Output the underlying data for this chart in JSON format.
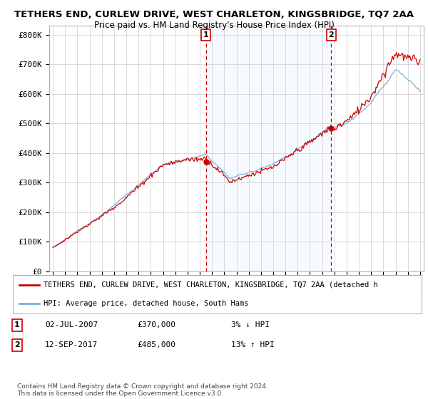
{
  "title": "TETHERS END, CURLEW DRIVE, WEST CHARLETON, KINGSBRIDGE, TQ7 2AA",
  "subtitle": "Price paid vs. HM Land Registry's House Price Index (HPI)",
  "ylabel_ticks": [
    "£0",
    "£100K",
    "£200K",
    "£300K",
    "£400K",
    "£500K",
    "£600K",
    "£700K",
    "£800K"
  ],
  "ytick_values": [
    0,
    100000,
    200000,
    300000,
    400000,
    500000,
    600000,
    700000,
    800000
  ],
  "ylim": [
    0,
    830000
  ],
  "sale1_year": 2007.5,
  "sale1_price": 370000,
  "sale2_year": 2017.75,
  "sale2_price": 485000,
  "hpi_color": "#7bafd4",
  "property_color": "#cc0000",
  "dashed_color": "#cc0000",
  "shade_color": "#ddeeff",
  "background_color": "#ffffff",
  "grid_color": "#cccccc",
  "legend_text_property": "TETHERS END, CURLEW DRIVE, WEST CHARLETON, KINGSBRIDGE, TQ7 2AA (detached h",
  "legend_text_hpi": "HPI: Average price, detached house, South Hams",
  "annotation1_date": "02-JUL-2007",
  "annotation1_price": "£370,000",
  "annotation1_hpi": "3% ↓ HPI",
  "annotation2_date": "12-SEP-2017",
  "annotation2_price": "£485,000",
  "annotation2_hpi": "13% ↑ HPI",
  "footer": "Contains HM Land Registry data © Crown copyright and database right 2024.\nThis data is licensed under the Open Government Licence v3.0.",
  "xlim_left": 1994.7,
  "xlim_right": 2025.3
}
